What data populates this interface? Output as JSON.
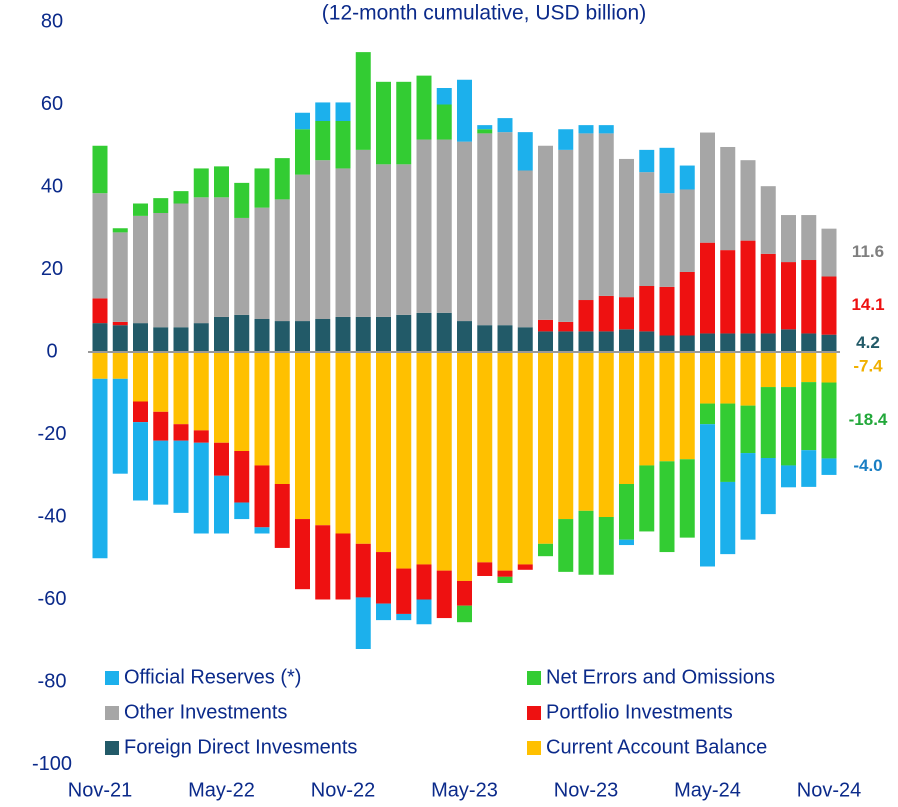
{
  "chart_data": {
    "type": "stacked_bar",
    "subtitle": "(12-month cumulative, USD billion)",
    "categories": [
      "Nov-21",
      null,
      null,
      null,
      null,
      null,
      "May-22",
      null,
      null,
      null,
      null,
      null,
      "Nov-22",
      null,
      null,
      null,
      null,
      null,
      "May-23",
      null,
      null,
      null,
      null,
      null,
      "Nov-23",
      null,
      null,
      null,
      null,
      null,
      "May-24",
      null,
      null,
      null,
      null,
      null,
      "Nov-24"
    ],
    "series": [
      {
        "name": "Official Reserves (*)",
        "color": "#1cb0ec",
        "values": [
          -43.5,
          -23,
          -19,
          -15.5,
          -17.5,
          -22,
          -14,
          -4,
          -1.5,
          0,
          4,
          4.5,
          4.5,
          -12.5,
          -4,
          -1.5,
          -6,
          4,
          15,
          1,
          3.4,
          9.3,
          0,
          5,
          2,
          2,
          -1.3,
          5.4,
          11,
          5.8,
          -34.5,
          -17.5,
          -21,
          -13.6,
          -5.3,
          -8.9,
          -4.0
        ],
        "value_labels": [
          null,
          null,
          null,
          null,
          null,
          null,
          null,
          null,
          null,
          null,
          null,
          null,
          null,
          null,
          null,
          null,
          null,
          null,
          null,
          null,
          null,
          null,
          null,
          null,
          null,
          null,
          null,
          null,
          null,
          null,
          null,
          null,
          null,
          null,
          null,
          null,
          "-4.0"
        ],
        "label_color": "#1a7fc4"
      },
      {
        "name": "Net Errors and Omissions",
        "color": "#33cc33",
        "values": [
          11.5,
          1,
          3,
          3.6,
          3,
          7,
          7.5,
          8.5,
          9.5,
          10,
          11,
          9.5,
          11.5,
          23.7,
          20,
          20,
          15.5,
          8.5,
          -4,
          1,
          -1.5,
          0,
          -3,
          -12.8,
          -15.5,
          -14,
          -13.5,
          -16,
          -22,
          -19,
          -5,
          -19,
          -11.5,
          -17.2,
          -19,
          -16.5,
          -18.4
        ],
        "value_labels": [
          null,
          null,
          null,
          null,
          null,
          null,
          null,
          null,
          null,
          null,
          null,
          null,
          null,
          null,
          null,
          null,
          null,
          null,
          null,
          null,
          null,
          null,
          null,
          null,
          null,
          null,
          null,
          null,
          null,
          null,
          null,
          null,
          null,
          null,
          null,
          null,
          "-18.4"
        ],
        "label_color": "#22a83a"
      },
      {
        "name": "Other Investments",
        "color": "#a6a6a6",
        "values": [
          25.5,
          21.7,
          26,
          27.7,
          30,
          30.5,
          29,
          23.5,
          27,
          29.5,
          35.5,
          38.5,
          36,
          40.5,
          37,
          36.5,
          42,
          42,
          43.5,
          46.5,
          46.8,
          38,
          42.2,
          41.7,
          40.4,
          39.4,
          33.5,
          27.6,
          22.7,
          20,
          26.7,
          25,
          19.5,
          16.4,
          11.4,
          10.9,
          11.6
        ],
        "value_labels": [
          null,
          null,
          null,
          null,
          null,
          null,
          null,
          null,
          null,
          null,
          null,
          null,
          null,
          null,
          null,
          null,
          null,
          null,
          null,
          null,
          null,
          null,
          null,
          null,
          null,
          null,
          null,
          null,
          null,
          null,
          null,
          null,
          null,
          null,
          null,
          null,
          "11.6"
        ],
        "label_color": "#7f7f7f"
      },
      {
        "name": "Portfolio Investments",
        "color": "#ee1111",
        "values": [
          6,
          0.8,
          -5,
          -7,
          -4,
          -3,
          -8,
          -12.5,
          -15,
          -15.5,
          -17,
          -18,
          -16,
          -13,
          -12.5,
          -11,
          -8.5,
          -11.5,
          -6,
          -3.3,
          -1.5,
          -1.3,
          2.8,
          2.3,
          7.6,
          8.6,
          7.8,
          11,
          11.8,
          15.4,
          22,
          20.2,
          22.5,
          19.3,
          16.3,
          17.8,
          14.1
        ],
        "value_labels": [
          null,
          null,
          null,
          null,
          null,
          null,
          null,
          null,
          null,
          null,
          null,
          null,
          null,
          null,
          null,
          null,
          null,
          null,
          null,
          null,
          null,
          null,
          null,
          null,
          null,
          null,
          null,
          null,
          null,
          null,
          null,
          null,
          null,
          null,
          null,
          null,
          "14.1"
        ],
        "label_color": "#ee1111"
      },
      {
        "name": "Foreign Direct Invesments",
        "color": "#225a68",
        "values": [
          7,
          6.5,
          7,
          6,
          6,
          7,
          8.5,
          9,
          8,
          7.5,
          7.5,
          8,
          8.5,
          8.5,
          8.5,
          9,
          9.5,
          9.5,
          7.5,
          6.5,
          6.5,
          6,
          5,
          5,
          5,
          5,
          5.5,
          5,
          4,
          4,
          4.5,
          4.5,
          4.5,
          4.5,
          5.5,
          4.5,
          4.2
        ],
        "value_labels": [
          null,
          null,
          null,
          null,
          null,
          null,
          null,
          null,
          null,
          null,
          null,
          null,
          null,
          null,
          null,
          null,
          null,
          null,
          null,
          null,
          null,
          null,
          null,
          null,
          null,
          null,
          null,
          null,
          null,
          null,
          null,
          null,
          null,
          null,
          null,
          null,
          "4.2"
        ],
        "label_color": "#225a68"
      },
      {
        "name": "Current Account Balance",
        "color": "#ffc000",
        "values": [
          -6.5,
          -6.5,
          -12,
          -14.5,
          -17.5,
          -19,
          -22,
          -24,
          -27.5,
          -32,
          -40.5,
          -42,
          -44,
          -46.5,
          -48.5,
          -52.5,
          -51.5,
          -53,
          -55.5,
          -51,
          -53,
          -51.5,
          -46.5,
          -40.5,
          -38.5,
          -40,
          -32,
          -27.5,
          -26.5,
          -26,
          -12.5,
          -12.5,
          -13,
          -8.5,
          -8.5,
          -7.3,
          -7.4
        ],
        "value_labels": [
          null,
          null,
          null,
          null,
          null,
          null,
          null,
          null,
          null,
          null,
          null,
          null,
          null,
          null,
          null,
          null,
          null,
          null,
          null,
          null,
          null,
          null,
          null,
          null,
          null,
          null,
          null,
          null,
          null,
          null,
          null,
          null,
          null,
          null,
          null,
          null,
          "-7.4"
        ],
        "label_color": "#f0b000"
      }
    ],
    "ylim": [
      -100,
      80
    ],
    "yticks": [
      -100,
      -80,
      -60,
      -40,
      -20,
      0,
      20,
      40,
      60,
      80
    ],
    "grid": false
  }
}
